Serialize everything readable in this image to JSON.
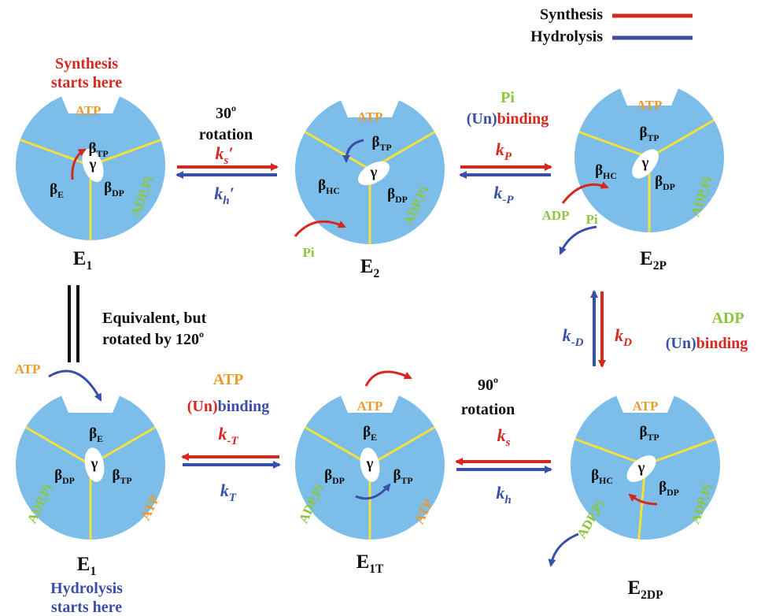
{
  "legend": {
    "synthesis": "Synthesis",
    "hydrolysis": "Hydrolysis"
  },
  "states": [
    {
      "name": {
        "base": "E",
        "sub": "1"
      },
      "gamma": "γ",
      "betas": [
        {
          "base": "β",
          "sub": "TP"
        },
        {
          "base": "β",
          "sub": "E"
        },
        {
          "base": "β",
          "sub": "DP"
        }
      ],
      "tags": [
        "ATP",
        "ADP,Pi"
      ],
      "substrates": []
    },
    {
      "name": {
        "base": "E",
        "sub": "2"
      },
      "gamma": "γ",
      "betas": [
        {
          "base": "β",
          "sub": "TP"
        },
        {
          "base": "β",
          "sub": "HC"
        },
        {
          "base": "β",
          "sub": "DP"
        }
      ],
      "tags": [
        "ATP",
        "ADP,Pi"
      ],
      "substrates": [
        "Pi"
      ]
    },
    {
      "name": {
        "base": "E",
        "sub": "2P"
      },
      "gamma": "γ",
      "betas": [
        {
          "base": "β",
          "sub": "TP"
        },
        {
          "base": "β",
          "sub": "HC"
        },
        {
          "base": "β",
          "sub": "DP"
        }
      ],
      "tags": [
        "ATP",
        "ADP,Pi"
      ],
      "substrates": [
        "ADP",
        "Pi"
      ]
    },
    {
      "name": {
        "base": "E",
        "sub": "2DP"
      },
      "gamma": "γ",
      "betas": [
        {
          "base": "β",
          "sub": "TP"
        },
        {
          "base": "β",
          "sub": "HC"
        },
        {
          "base": "β",
          "sub": "DP"
        }
      ],
      "tags": [
        "ATP",
        "ADP,Pi"
      ],
      "substrates": [
        "ADP,Pi"
      ]
    },
    {
      "name": {
        "base": "E",
        "sub": "1T"
      },
      "gamma": "γ",
      "betas": [
        {
          "base": "β",
          "sub": "E"
        },
        {
          "base": "β",
          "sub": "DP"
        },
        {
          "base": "β",
          "sub": "TP"
        }
      ],
      "tags": [
        "ATP",
        "ADP,Pi",
        "ATP"
      ],
      "substrates": []
    },
    {
      "name": {
        "base": "E",
        "sub": "1"
      },
      "gamma": "γ",
      "betas": [
        {
          "base": "β",
          "sub": "E"
        },
        {
          "base": "β",
          "sub": "DP"
        },
        {
          "base": "β",
          "sub": "TP"
        }
      ],
      "tags": [
        "ADP,Pi",
        "ATP"
      ],
      "substrates": [
        "ATP"
      ]
    }
  ],
  "transitions": [
    {
      "caption": [
        [
          {
            "text": "30"
          },
          {
            "text": "o",
            "sup": true
          }
        ],
        [
          {
            "text": "rotation"
          }
        ]
      ],
      "synthesis": {
        "symbol": "k",
        "sub": "s",
        "prime": "′"
      },
      "hydrolysis": {
        "symbol": "k",
        "sub": "h",
        "prime": "′"
      }
    },
    {
      "caption": [
        [
          {
            "text": "Pi",
            "color": "green"
          }
        ],
        [
          {
            "text": "(Un)",
            "color": "blue"
          },
          {
            "text": "binding",
            "color": "red"
          }
        ]
      ],
      "synthesis": {
        "symbol": "k",
        "sub": "P"
      },
      "hydrolysis": {
        "symbol": "k",
        "sub": "-P"
      }
    },
    {
      "caption": [
        [
          {
            "text": "ADP",
            "color": "green"
          }
        ],
        [
          {
            "text": "(Un)",
            "color": "blue"
          },
          {
            "text": "binding",
            "color": "red"
          }
        ]
      ],
      "synthesis": {
        "symbol": "k",
        "sub": "D"
      },
      "hydrolysis": {
        "symbol": "k",
        "sub": "-D"
      }
    },
    {
      "caption": [
        [
          {
            "text": "90"
          },
          {
            "text": "o",
            "sup": true
          }
        ],
        [
          {
            "text": "rotation"
          }
        ]
      ],
      "synthesis": {
        "symbol": "k",
        "sub": "s"
      },
      "hydrolysis": {
        "symbol": "k",
        "sub": "h"
      }
    },
    {
      "caption": [
        [
          {
            "text": "ATP",
            "color": "orange"
          }
        ],
        [
          {
            "text": "(Un)",
            "color": "red"
          },
          {
            "text": "binding",
            "color": "blue"
          }
        ]
      ],
      "synthesis": {
        "symbol": "k",
        "sub": "-T"
      },
      "hydrolysis": {
        "symbol": "k",
        "sub": "T"
      }
    }
  ],
  "notes": {
    "synthesis_start": [
      [
        {
          "text": "Synthesis",
          "color": "red"
        }
      ],
      [
        {
          "text": "starts here",
          "color": "red"
        }
      ]
    ],
    "hydrolysis_start": [
      [
        {
          "text": "Hydrolysis",
          "color": "blue"
        }
      ],
      [
        {
          "text": "starts here",
          "color": "blue"
        }
      ]
    ],
    "equivalence": [
      [
        {
          "text": "Equivalent, but"
        }
      ],
      [
        {
          "text": "rotated by 120"
        },
        {
          "text": "o",
          "sup": true
        }
      ]
    ]
  }
}
